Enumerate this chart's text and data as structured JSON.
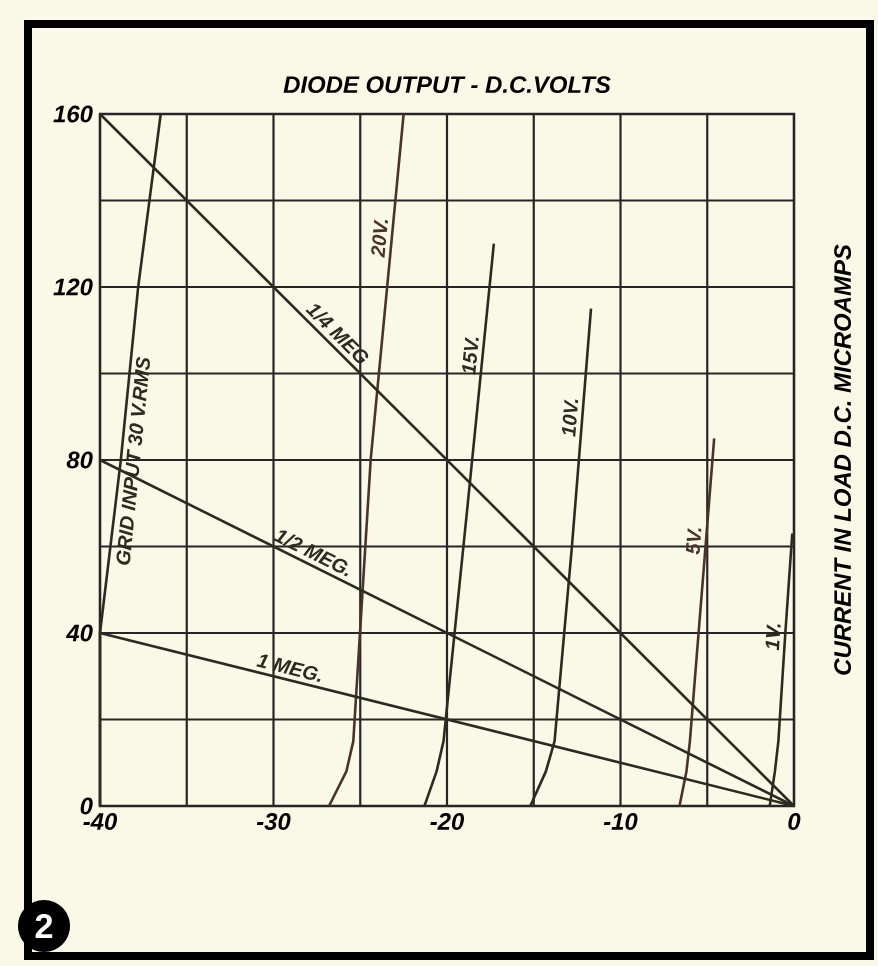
{
  "chart_data": {
    "type": "line",
    "title": "DIODE OUTPUT - D.C.VOLTS",
    "ylabel": "CURRENT IN LOAD   D.C. MICROAMPS",
    "xlim": [
      -40,
      0
    ],
    "ylim": [
      0,
      160
    ],
    "xticks": [
      -40,
      -30,
      -20,
      -10,
      0
    ],
    "yticks": [
      0,
      40,
      80,
      120,
      160
    ],
    "grid": true,
    "marker": "none",
    "line_style": "solid",
    "annotations": [
      "2"
    ],
    "series": [
      {
        "name": "GRID INPUT 30 V.RMS",
        "color": "#2b2b22",
        "x": [
          -40,
          -40,
          -38.8,
          -37.8,
          -36.5
        ],
        "values": [
          0,
          40,
          80,
          120,
          160
        ]
      },
      {
        "name": "20V.",
        "color": "#4a3328",
        "x": [
          -26.8,
          -25.8,
          -25.4,
          -24.4,
          -22.5
        ],
        "values": [
          0,
          8,
          15,
          80,
          160
        ]
      },
      {
        "name": "15V.",
        "color": "#2b2b22",
        "x": [
          -21.3,
          -20.6,
          -20.2,
          -18.8,
          -17.3
        ],
        "values": [
          0,
          8,
          15,
          70,
          130
        ]
      },
      {
        "name": "10V.",
        "color": "#2b2b22",
        "x": [
          -15.2,
          -14.3,
          -13.8,
          -12.8,
          -11.7
        ],
        "values": [
          0,
          8,
          15,
          60,
          115
        ]
      },
      {
        "name": "5V.",
        "color": "#4a3328",
        "x": [
          -6.6,
          -6.2,
          -6.0,
          -5.4,
          -4.6
        ],
        "values": [
          0,
          8,
          15,
          45,
          85
        ]
      },
      {
        "name": "1V.",
        "color": "#2b2b22",
        "x": [
          -1.4,
          -1.1,
          -0.9,
          -0.5,
          -0.1
        ],
        "values": [
          0,
          8,
          15,
          40,
          63
        ]
      },
      {
        "name": "1/4 MEG",
        "color": "#2b2b22",
        "x": [
          -40,
          0
        ],
        "values": [
          160,
          0
        ]
      },
      {
        "name": "1/2 MEG.",
        "color": "#2b2b22",
        "x": [
          -40,
          0
        ],
        "values": [
          80,
          0
        ]
      },
      {
        "name": "1 MEG.",
        "color": "#2b2b22",
        "x": [
          -40,
          0
        ],
        "values": [
          40,
          0
        ]
      }
    ]
  }
}
